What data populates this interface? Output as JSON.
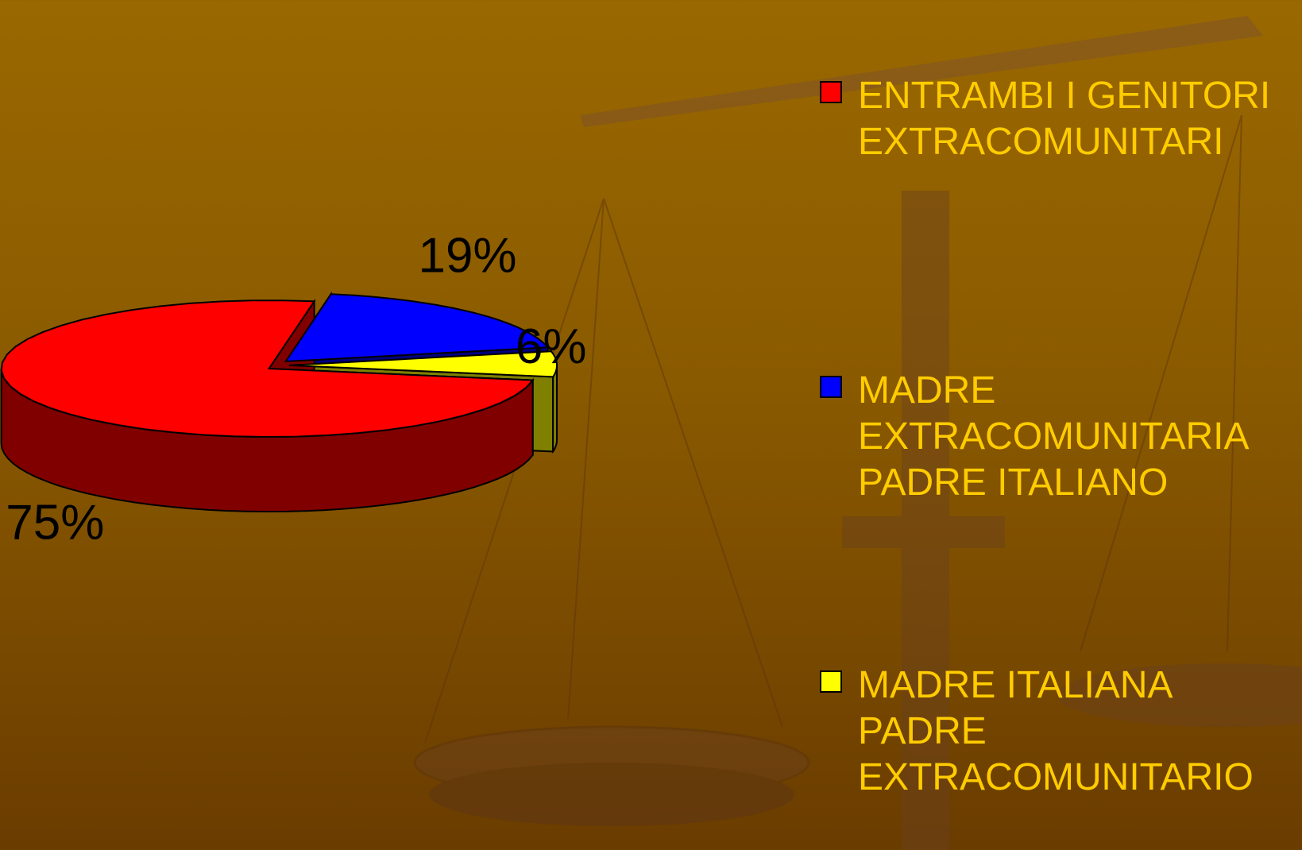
{
  "chart_data": {
    "type": "pie",
    "categories": [
      "ENTRAMBI I GENITORI EXTRACOMUNITARI",
      "MADRE EXTRACOMUNITARIA PADRE ITALIANO",
      "MADRE ITALIANA PADRE EXTRACOMUNITARIO"
    ],
    "values": [
      75,
      19,
      6
    ],
    "value_labels": [
      "75%",
      "19%",
      "6%"
    ],
    "colors": [
      "#ff0000",
      "#0000ff",
      "#ffff00"
    ]
  }
}
